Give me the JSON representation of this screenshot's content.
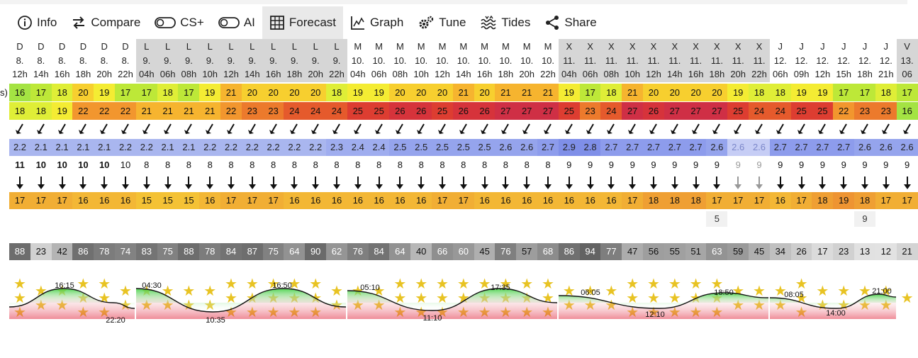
{
  "tabs": [
    {
      "label": "Info",
      "icon": "info-icon",
      "active": false
    },
    {
      "label": "Compare",
      "icon": "compare-arrows-icon",
      "active": false
    },
    {
      "label": "CS+",
      "icon": "toggle-off-icon",
      "active": false
    },
    {
      "label": "AI",
      "icon": "toggle-off-icon",
      "active": false
    },
    {
      "label": "Forecast",
      "icon": "table-grid-icon",
      "active": true
    },
    {
      "label": "Graph",
      "icon": "line-graph-icon",
      "active": false
    },
    {
      "label": "Tune",
      "icon": "gears-icon",
      "active": false
    },
    {
      "label": "Tides",
      "icon": "waves-icon",
      "active": false
    },
    {
      "label": "Share",
      "icon": "share-icon",
      "active": false
    }
  ],
  "row_stub": "s)",
  "columns": [
    {
      "d": "D",
      "n": "8.",
      "h": "12h",
      "t1": "16",
      "t2": "18",
      "ws": "2.2",
      "p": "11",
      "dir": "17",
      "ex": "",
      "cl": "88"
    },
    {
      "d": "D",
      "n": "8.",
      "h": "14h",
      "t1": "17",
      "t2": "18",
      "ws": "2.1",
      "p": "10",
      "dir": "17",
      "ex": "",
      "cl": "23"
    },
    {
      "d": "D",
      "n": "8.",
      "h": "16h",
      "t1": "18",
      "t2": "19",
      "ws": "2.1",
      "p": "10",
      "dir": "17",
      "ex": "",
      "cl": "42"
    },
    {
      "d": "D",
      "n": "8.",
      "h": "18h",
      "t1": "20",
      "t2": "22",
      "ws": "2.1",
      "p": "10",
      "dir": "16",
      "ex": "",
      "cl": "86"
    },
    {
      "d": "D",
      "n": "8.",
      "h": "20h",
      "t1": "19",
      "t2": "22",
      "ws": "2.1",
      "p": "10",
      "dir": "16",
      "ex": "",
      "cl": "78"
    },
    {
      "d": "D",
      "n": "8.",
      "h": "22h",
      "t1": "17",
      "t2": "22",
      "ws": "2.2",
      "p": "10",
      "dir": "16",
      "ex": "",
      "cl": "74"
    },
    {
      "d": "L",
      "n": "9.",
      "h": "04h",
      "t1": "17",
      "t2": "21",
      "ws": "2.2",
      "p": "8",
      "dir": "15",
      "ex": "",
      "cl": "83"
    },
    {
      "d": "L",
      "n": "9.",
      "h": "06h",
      "t1": "18",
      "t2": "21",
      "ws": "2.1",
      "p": "8",
      "dir": "15",
      "ex": "",
      "cl": "75"
    },
    {
      "d": "L",
      "n": "9.",
      "h": "08h",
      "t1": "17",
      "t2": "21",
      "ws": "2.1",
      "p": "8",
      "dir": "15",
      "ex": "",
      "cl": "88"
    },
    {
      "d": "L",
      "n": "9.",
      "h": "10h",
      "t1": "19",
      "t2": "21",
      "ws": "2.2",
      "p": "8",
      "dir": "16",
      "ex": "",
      "cl": "78"
    },
    {
      "d": "L",
      "n": "9.",
      "h": "12h",
      "t1": "21",
      "t2": "22",
      "ws": "2.2",
      "p": "8",
      "dir": "17",
      "ex": "",
      "cl": "84"
    },
    {
      "d": "L",
      "n": "9.",
      "h": "14h",
      "t1": "20",
      "t2": "23",
      "ws": "2.2",
      "p": "8",
      "dir": "17",
      "ex": "",
      "cl": "87"
    },
    {
      "d": "L",
      "n": "9.",
      "h": "16h",
      "t1": "20",
      "t2": "23",
      "ws": "2.2",
      "p": "8",
      "dir": "17",
      "ex": "",
      "cl": "75"
    },
    {
      "d": "L",
      "n": "9.",
      "h": "18h",
      "t1": "20",
      "t2": "24",
      "ws": "2.2",
      "p": "8",
      "dir": "16",
      "ex": "",
      "cl": "64"
    },
    {
      "d": "L",
      "n": "9.",
      "h": "20h",
      "t1": "20",
      "t2": "24",
      "ws": "2.2",
      "p": "8",
      "dir": "16",
      "ex": "",
      "cl": "90"
    },
    {
      "d": "L",
      "n": "9.",
      "h": "22h",
      "t1": "18",
      "t2": "24",
      "ws": "2.3",
      "p": "8",
      "dir": "16",
      "ex": "",
      "cl": "62"
    },
    {
      "d": "M",
      "n": "10.",
      "h": "04h",
      "t1": "19",
      "t2": "25",
      "ws": "2.4",
      "p": "8",
      "dir": "16",
      "ex": "",
      "cl": "76"
    },
    {
      "d": "M",
      "n": "10.",
      "h": "06h",
      "t1": "19",
      "t2": "25",
      "ws": "2.4",
      "p": "8",
      "dir": "16",
      "ex": "",
      "cl": "84"
    },
    {
      "d": "M",
      "n": "10.",
      "h": "08h",
      "t1": "20",
      "t2": "26",
      "ws": "2.5",
      "p": "8",
      "dir": "16",
      "ex": "",
      "cl": "64"
    },
    {
      "d": "M",
      "n": "10.",
      "h": "10h",
      "t1": "20",
      "t2": "26",
      "ws": "2.5",
      "p": "8",
      "dir": "16",
      "ex": "",
      "cl": "40"
    },
    {
      "d": "M",
      "n": "10.",
      "h": "12h",
      "t1": "20",
      "t2": "25",
      "ws": "2.5",
      "p": "8",
      "dir": "17",
      "ex": "",
      "cl": "66"
    },
    {
      "d": "M",
      "n": "10.",
      "h": "14h",
      "t1": "21",
      "t2": "26",
      "ws": "2.5",
      "p": "8",
      "dir": "17",
      "ex": "",
      "cl": "60"
    },
    {
      "d": "M",
      "n": "10.",
      "h": "16h",
      "t1": "20",
      "t2": "26",
      "ws": "2.5",
      "p": "8",
      "dir": "16",
      "ex": "",
      "cl": "45"
    },
    {
      "d": "M",
      "n": "10.",
      "h": "18h",
      "t1": "21",
      "t2": "27",
      "ws": "2.6",
      "p": "8",
      "dir": "16",
      "ex": "",
      "cl": "76"
    },
    {
      "d": "M",
      "n": "10.",
      "h": "20h",
      "t1": "21",
      "t2": "27",
      "ws": "2.6",
      "p": "8",
      "dir": "16",
      "ex": "",
      "cl": "57"
    },
    {
      "d": "M",
      "n": "10.",
      "h": "22h",
      "t1": "21",
      "t2": "27",
      "ws": "2.7",
      "p": "8",
      "dir": "16",
      "ex": "",
      "cl": "68"
    },
    {
      "d": "X",
      "n": "11.",
      "h": "04h",
      "t1": "19",
      "t2": "25",
      "ws": "2.9",
      "p": "9",
      "dir": "16",
      "ex": "",
      "cl": "86"
    },
    {
      "d": "X",
      "n": "11.",
      "h": "06h",
      "t1": "17",
      "t2": "23",
      "ws": "2.8",
      "p": "9",
      "dir": "16",
      "ex": "",
      "cl": "94"
    },
    {
      "d": "X",
      "n": "11.",
      "h": "08h",
      "t1": "18",
      "t2": "24",
      "ws": "2.7",
      "p": "9",
      "dir": "16",
      "ex": "",
      "cl": "77"
    },
    {
      "d": "X",
      "n": "11.",
      "h": "10h",
      "t1": "21",
      "t2": "27",
      "ws": "2.7",
      "p": "9",
      "dir": "17",
      "ex": "",
      "cl": "47"
    },
    {
      "d": "X",
      "n": "11.",
      "h": "12h",
      "t1": "20",
      "t2": "26",
      "ws": "2.7",
      "p": "9",
      "dir": "18",
      "ex": "",
      "cl": "56"
    },
    {
      "d": "X",
      "n": "11.",
      "h": "14h",
      "t1": "20",
      "t2": "27",
      "ws": "2.7",
      "p": "9",
      "dir": "18",
      "ex": "",
      "cl": "55"
    },
    {
      "d": "X",
      "n": "11.",
      "h": "16h",
      "t1": "20",
      "t2": "27",
      "ws": "2.7",
      "p": "9",
      "dir": "18",
      "ex": "",
      "cl": "51"
    },
    {
      "d": "X",
      "n": "11.",
      "h": "18h",
      "t1": "20",
      "t2": "27",
      "ws": "2.6",
      "p": "9",
      "dir": "17",
      "ex": "5",
      "cl": "63"
    },
    {
      "d": "X",
      "n": "11.",
      "h": "20h",
      "t1": "19",
      "t2": "25",
      "ws": "2.6",
      "p": "9",
      "dir": "17",
      "ex": "",
      "cl": "59"
    },
    {
      "d": "X",
      "n": "11.",
      "h": "22h",
      "t1": "18",
      "t2": "24",
      "ws": "2.6",
      "p": "9",
      "dir": "17",
      "ex": "",
      "cl": "45"
    },
    {
      "d": "J",
      "n": "12.",
      "h": "06h",
      "t1": "18",
      "t2": "24",
      "ws": "2.7",
      "p": "9",
      "dir": "16",
      "ex": "",
      "cl": "34"
    },
    {
      "d": "J",
      "n": "12.",
      "h": "09h",
      "t1": "19",
      "t2": "25",
      "ws": "2.7",
      "p": "9",
      "dir": "17",
      "ex": "",
      "cl": "26"
    },
    {
      "d": "J",
      "n": "12.",
      "h": "12h",
      "t1": "19",
      "t2": "25",
      "ws": "2.7",
      "p": "9",
      "dir": "18",
      "ex": "",
      "cl": "17"
    },
    {
      "d": "J",
      "n": "12.",
      "h": "15h",
      "t1": "17",
      "t2": "22",
      "ws": "2.7",
      "p": "9",
      "dir": "19",
      "ex": "",
      "cl": "23"
    },
    {
      "d": "J",
      "n": "12.",
      "h": "18h",
      "t1": "17",
      "t2": "23",
      "ws": "2.6",
      "p": "9",
      "dir": "18",
      "ex": "9",
      "cl": "13"
    },
    {
      "d": "J",
      "n": "12.",
      "h": "21h",
      "t1": "18",
      "t2": "23",
      "ws": "2.6",
      "p": "9",
      "dir": "17",
      "ex": "",
      "cl": "12"
    },
    {
      "d": "V",
      "n": "13.",
      "h": "06",
      "t1": "17",
      "t2": "16",
      "ws": "2.6",
      "p": "9",
      "dir": "17",
      "ex": "",
      "cl": "21"
    }
  ],
  "stars": [
    3,
    2,
    2,
    3,
    3,
    2,
    2,
    2,
    2,
    2,
    3,
    3,
    3,
    3,
    3,
    2,
    2,
    2,
    3,
    3,
    3,
    3,
    3,
    3,
    3,
    3,
    2,
    2,
    2,
    3,
    3,
    3,
    3,
    3,
    2,
    2,
    2,
    3,
    2,
    2,
    2,
    2,
    1
  ],
  "tides": [
    {
      "time": "16:15",
      "type": "high"
    },
    {
      "time": "22:20",
      "type": "low"
    },
    {
      "time": "04:30",
      "type": "high"
    },
    {
      "time": "10:35",
      "type": "low"
    },
    {
      "time": "16:50",
      "type": "high"
    },
    {
      "time": "05:10",
      "type": "high"
    },
    {
      "time": "11:10",
      "type": "low"
    },
    {
      "time": "17:35",
      "type": "high"
    },
    {
      "time": "06:05",
      "type": "high"
    },
    {
      "time": "12:10",
      "type": "low"
    },
    {
      "time": "18:50",
      "type": "high"
    },
    {
      "time": "08:05",
      "type": "high"
    },
    {
      "time": "14:00",
      "type": "low"
    },
    {
      "time": "21:00",
      "type": "high"
    }
  ],
  "colors": {
    "active_tab": "#e9e9e9",
    "header_grey": "#d4d4d4",
    "wind_blue": "#8fa2e8",
    "star": "#e8c323",
    "tide_high": "#5fd35f",
    "tide_low": "#e0233a"
  }
}
